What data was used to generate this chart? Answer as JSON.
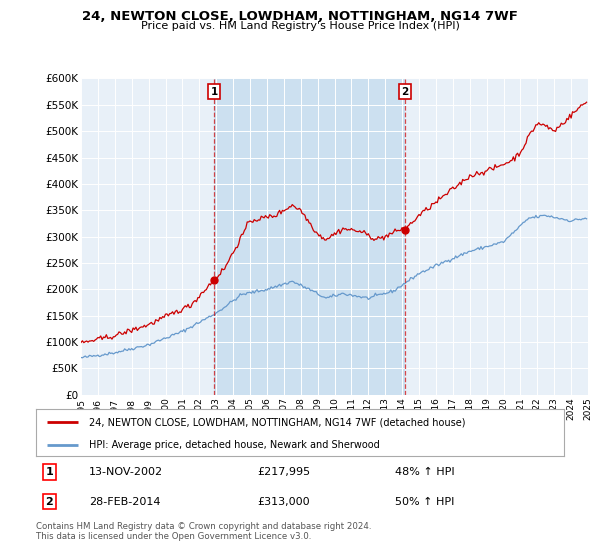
{
  "title": "24, NEWTON CLOSE, LOWDHAM, NOTTINGHAM, NG14 7WF",
  "subtitle": "Price paid vs. HM Land Registry's House Price Index (HPI)",
  "legend_property": "24, NEWTON CLOSE, LOWDHAM, NOTTINGHAM, NG14 7WF (detached house)",
  "legend_hpi": "HPI: Average price, detached house, Newark and Sherwood",
  "sale1_label": "1",
  "sale1_date": "13-NOV-2002",
  "sale1_price": "£217,995",
  "sale1_hpi": "48% ↑ HPI",
  "sale2_label": "2",
  "sale2_date": "28-FEB-2014",
  "sale2_price": "£313,000",
  "sale2_hpi": "50% ↑ HPI",
  "footer": "Contains HM Land Registry data © Crown copyright and database right 2024.\nThis data is licensed under the Open Government Licence v3.0.",
  "ylim": [
    0,
    600000
  ],
  "yticks": [
    0,
    50000,
    100000,
    150000,
    200000,
    250000,
    300000,
    350000,
    400000,
    450000,
    500000,
    550000,
    600000
  ],
  "ytick_labels": [
    "£0",
    "£50K",
    "£100K",
    "£150K",
    "£200K",
    "£250K",
    "£300K",
    "£350K",
    "£400K",
    "£450K",
    "£500K",
    "£550K",
    "£600K"
  ],
  "property_color": "#cc0000",
  "hpi_color": "#6699cc",
  "chart_bg": "#e8f0f8",
  "highlight_bg": "#cce0f0",
  "marker1_x": 2002.87,
  "marker1_y": 217995,
  "marker2_x": 2014.16,
  "marker2_y": 313000,
  "xlim_start": 1995,
  "xlim_end": 2025
}
